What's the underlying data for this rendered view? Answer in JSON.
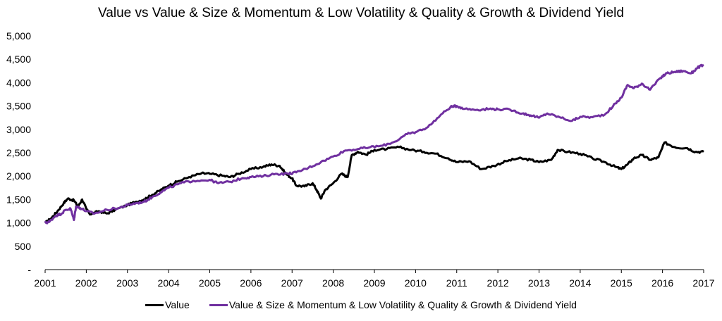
{
  "chart_data": {
    "type": "line",
    "title": "Value vs Value & Size & Momentum & Low Volatility & Quality & Growth & Dividend Yield",
    "xlabel": "",
    "ylabel": "",
    "xlim": [
      2001,
      2017
    ],
    "ylim": [
      0,
      5000
    ],
    "y_ticks": [
      0,
      500,
      1000,
      1500,
      2000,
      2500,
      3000,
      3500,
      4000,
      4500,
      5000
    ],
    "y_tick_labels": [
      "-",
      "500",
      "1,000",
      "1,500",
      "2,000",
      "2,500",
      "3,000",
      "3,500",
      "4,000",
      "4,500",
      "5,000"
    ],
    "x_ticks": [
      2001,
      2002,
      2003,
      2004,
      2005,
      2006,
      2007,
      2008,
      2009,
      2010,
      2011,
      2012,
      2013,
      2014,
      2015,
      2016,
      2017
    ],
    "x_tick_labels": [
      "2001",
      "2002",
      "2003",
      "2004",
      "2005",
      "2006",
      "2007",
      "2008",
      "2009",
      "2010",
      "2011",
      "2012",
      "2013",
      "2014",
      "2015",
      "2016",
      "2017"
    ],
    "legend_position": "bottom",
    "series": [
      {
        "name": "Value",
        "color": "#000000",
        "points": [
          [
            2001.0,
            1000
          ],
          [
            2001.15,
            1100
          ],
          [
            2001.3,
            1250
          ],
          [
            2001.45,
            1420
          ],
          [
            2001.55,
            1520
          ],
          [
            2001.7,
            1480
          ],
          [
            2001.8,
            1350
          ],
          [
            2001.9,
            1500
          ],
          [
            2002.0,
            1300
          ],
          [
            2002.1,
            1180
          ],
          [
            2002.3,
            1250
          ],
          [
            2002.5,
            1200
          ],
          [
            2002.7,
            1280
          ],
          [
            2003.0,
            1380
          ],
          [
            2003.2,
            1450
          ],
          [
            2003.4,
            1500
          ],
          [
            2003.6,
            1600
          ],
          [
            2003.8,
            1700
          ],
          [
            2004.0,
            1800
          ],
          [
            2004.2,
            1880
          ],
          [
            2004.5,
            1980
          ],
          [
            2004.8,
            2060
          ],
          [
            2005.0,
            2050
          ],
          [
            2005.3,
            2010
          ],
          [
            2005.5,
            1980
          ],
          [
            2005.7,
            2050
          ],
          [
            2006.0,
            2150
          ],
          [
            2006.3,
            2200
          ],
          [
            2006.5,
            2250
          ],
          [
            2006.7,
            2220
          ],
          [
            2006.85,
            2050
          ],
          [
            2007.0,
            1950
          ],
          [
            2007.1,
            1800
          ],
          [
            2007.3,
            1780
          ],
          [
            2007.5,
            1850
          ],
          [
            2007.6,
            1700
          ],
          [
            2007.7,
            1520
          ],
          [
            2007.8,
            1700
          ],
          [
            2008.0,
            1850
          ],
          [
            2008.2,
            2050
          ],
          [
            2008.35,
            1980
          ],
          [
            2008.45,
            2450
          ],
          [
            2008.6,
            2520
          ],
          [
            2008.8,
            2460
          ],
          [
            2009.0,
            2560
          ],
          [
            2009.3,
            2580
          ],
          [
            2009.6,
            2620
          ],
          [
            2009.9,
            2560
          ],
          [
            2010.2,
            2520
          ],
          [
            2010.5,
            2480
          ],
          [
            2010.8,
            2380
          ],
          [
            2011.0,
            2300
          ],
          [
            2011.3,
            2320
          ],
          [
            2011.6,
            2150
          ],
          [
            2011.9,
            2220
          ],
          [
            2012.2,
            2320
          ],
          [
            2012.5,
            2380
          ],
          [
            2012.8,
            2350
          ],
          [
            2013.0,
            2300
          ],
          [
            2013.3,
            2350
          ],
          [
            2013.45,
            2560
          ],
          [
            2013.7,
            2520
          ],
          [
            2014.0,
            2480
          ],
          [
            2014.3,
            2380
          ],
          [
            2014.6,
            2300
          ],
          [
            2014.85,
            2200
          ],
          [
            2015.0,
            2150
          ],
          [
            2015.15,
            2250
          ],
          [
            2015.3,
            2380
          ],
          [
            2015.5,
            2450
          ],
          [
            2015.7,
            2350
          ],
          [
            2015.9,
            2400
          ],
          [
            2016.05,
            2720
          ],
          [
            2016.3,
            2620
          ],
          [
            2016.6,
            2600
          ],
          [
            2016.8,
            2520
          ],
          [
            2017.0,
            2520
          ]
        ]
      },
      {
        "name": "Value & Size & Momentum & Low Volatility & Quality & Growth & Dividend Yield",
        "color": "#7030A0",
        "points": [
          [
            2001.0,
            1000
          ],
          [
            2001.1,
            1020
          ],
          [
            2001.25,
            1150
          ],
          [
            2001.4,
            1200
          ],
          [
            2001.5,
            1280
          ],
          [
            2001.62,
            1300
          ],
          [
            2001.7,
            1060
          ],
          [
            2001.75,
            1350
          ],
          [
            2001.85,
            1320
          ],
          [
            2002.0,
            1250
          ],
          [
            2002.2,
            1200
          ],
          [
            2002.5,
            1280
          ],
          [
            2002.8,
            1320
          ],
          [
            2003.0,
            1380
          ],
          [
            2003.2,
            1420
          ],
          [
            2003.4,
            1450
          ],
          [
            2003.6,
            1550
          ],
          [
            2003.8,
            1650
          ],
          [
            2004.0,
            1750
          ],
          [
            2004.3,
            1850
          ],
          [
            2004.6,
            1900
          ],
          [
            2005.0,
            1920
          ],
          [
            2005.2,
            1850
          ],
          [
            2005.5,
            1880
          ],
          [
            2005.8,
            1960
          ],
          [
            2006.0,
            1980
          ],
          [
            2006.3,
            2000
          ],
          [
            2006.6,
            2050
          ],
          [
            2006.9,
            2050
          ],
          [
            2007.1,
            2080
          ],
          [
            2007.4,
            2180
          ],
          [
            2007.7,
            2300
          ],
          [
            2008.0,
            2420
          ],
          [
            2008.3,
            2550
          ],
          [
            2008.6,
            2580
          ],
          [
            2008.9,
            2620
          ],
          [
            2009.2,
            2650
          ],
          [
            2009.5,
            2740
          ],
          [
            2009.8,
            2900
          ],
          [
            2010.0,
            2940
          ],
          [
            2010.3,
            3050
          ],
          [
            2010.6,
            3300
          ],
          [
            2010.85,
            3480
          ],
          [
            2011.0,
            3500
          ],
          [
            2011.2,
            3440
          ],
          [
            2011.5,
            3420
          ],
          [
            2011.8,
            3440
          ],
          [
            2012.0,
            3430
          ],
          [
            2012.3,
            3420
          ],
          [
            2012.6,
            3340
          ],
          [
            2012.8,
            3300
          ],
          [
            2013.0,
            3250
          ],
          [
            2013.2,
            3340
          ],
          [
            2013.5,
            3260
          ],
          [
            2013.8,
            3180
          ],
          [
            2014.0,
            3270
          ],
          [
            2014.3,
            3260
          ],
          [
            2014.6,
            3320
          ],
          [
            2014.8,
            3500
          ],
          [
            2015.0,
            3680
          ],
          [
            2015.15,
            3950
          ],
          [
            2015.3,
            3880
          ],
          [
            2015.5,
            3980
          ],
          [
            2015.7,
            3850
          ],
          [
            2015.95,
            4100
          ],
          [
            2016.1,
            4200
          ],
          [
            2016.3,
            4230
          ],
          [
            2016.5,
            4250
          ],
          [
            2016.7,
            4200
          ],
          [
            2016.85,
            4320
          ],
          [
            2017.0,
            4380
          ]
        ]
      }
    ]
  }
}
